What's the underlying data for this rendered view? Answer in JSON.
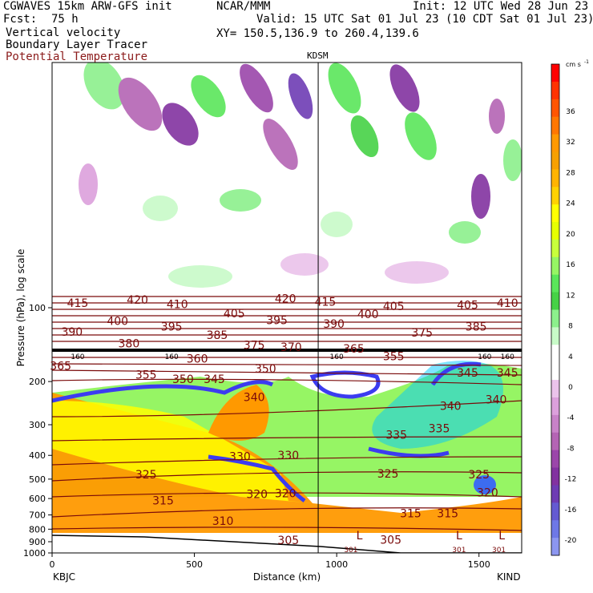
{
  "header": {
    "model": "CGWAVES 15km ARW-GFS init",
    "org": "NCAR/MMM",
    "init": "Init: 12 UTC Wed 28 Jun 23",
    "fcst_label": "Fcst:",
    "fcst_value": "75 h",
    "valid": "Valid: 15 UTC Sat 01 Jul 23 (10 CDT Sat 01 Jul 23)",
    "field1": "Vertical velocity",
    "field2": "Boundary Layer Tracer",
    "field3": "Potential Temperature",
    "xy": "XY= 150.5,136.9 to 260.4,139.6",
    "station_top": "KDSM",
    "left_station": "KBJC",
    "right_station": "KIND"
  },
  "colors": {
    "theta_line": "#7a0a0a",
    "field3_text": "#8b1a1a"
  },
  "chart_data": {
    "type": "cross-section",
    "title": "Vertical velocity / Boundary Layer Tracer / Potential Temperature",
    "xlabel": "Distance (km)",
    "ylabel": "Pressure (hPa), log scale",
    "xlim": [
      0,
      1650
    ],
    "ylim_hpa": [
      1000,
      10
    ],
    "x_ticks": [
      0,
      500,
      1000,
      1500
    ],
    "x_tick_labels": [
      "0",
      "500",
      "1000",
      "1500"
    ],
    "y_ticks": [
      100,
      200,
      300,
      400,
      500,
      600,
      700,
      800,
      900,
      1000
    ],
    "y_tick_labels": [
      "100",
      "200",
      "300",
      "400",
      "500",
      "600",
      "700",
      "800",
      "900",
      "1000"
    ],
    "station_marker_km": 935,
    "colorbar": {
      "units": "cm s",
      "units_exp": "-1",
      "ticks": [
        36,
        32,
        28,
        24,
        20,
        16,
        12,
        8,
        4,
        0,
        -4,
        -8,
        -12,
        -16,
        -20
      ],
      "tick_labels": [
        "36",
        "32",
        "28",
        "24",
        "20",
        "16",
        "12",
        "8",
        "4",
        "0",
        "-4",
        "-8",
        "-12",
        "-16",
        "-20"
      ],
      "colors": [
        "#ff0000",
        "#ff3300",
        "#ff5500",
        "#ff7700",
        "#ff9900",
        "#f7a000",
        "#ffb400",
        "#ffd200",
        "#ffff00",
        "#e6ff00",
        "#c8ff3c",
        "#96f564",
        "#5ae65a",
        "#46d246",
        "#8cf08c",
        "#c8fac8",
        "#ffffff",
        "#ffffff",
        "#ebc3eb",
        "#dca0dc",
        "#c882c8",
        "#b464b4",
        "#9b46aa",
        "#8232a0",
        "#6e3cb4",
        "#645ad2",
        "#6e78e6",
        "#8c96f0"
      ]
    },
    "theta_labels": [
      {
        "text": "415",
        "x": 90,
        "p": 97
      },
      {
        "text": "420",
        "x": 300,
        "p": 94
      },
      {
        "text": "410",
        "x": 440,
        "p": 98
      },
      {
        "text": "420",
        "x": 820,
        "p": 93
      },
      {
        "text": "415",
        "x": 960,
        "p": 96
      },
      {
        "text": "405",
        "x": 1200,
        "p": 100
      },
      {
        "text": "405",
        "x": 1460,
        "p": 99
      },
      {
        "text": "410",
        "x": 1600,
        "p": 97
      },
      {
        "text": "400",
        "x": 230,
        "p": 115
      },
      {
        "text": "405",
        "x": 640,
        "p": 107
      },
      {
        "text": "395",
        "x": 790,
        "p": 114
      },
      {
        "text": "390",
        "x": 990,
        "p": 118
      },
      {
        "text": "400",
        "x": 1110,
        "p": 108
      },
      {
        "text": "390",
        "x": 70,
        "p": 127
      },
      {
        "text": "395",
        "x": 420,
        "p": 121
      },
      {
        "text": "385",
        "x": 580,
        "p": 131
      },
      {
        "text": "375",
        "x": 1300,
        "p": 128
      },
      {
        "text": "385",
        "x": 1490,
        "p": 121
      },
      {
        "text": "380",
        "x": 270,
        "p": 142
      },
      {
        "text": "375",
        "x": 710,
        "p": 144
      },
      {
        "text": "370",
        "x": 840,
        "p": 147
      },
      {
        "text": "365",
        "x": 1060,
        "p": 149
      },
      {
        "text": "360",
        "x": 510,
        "p": 164
      },
      {
        "text": "355",
        "x": 1200,
        "p": 160
      },
      {
        "text": "365",
        "x": 30,
        "p": 175
      },
      {
        "text": "350",
        "x": 750,
        "p": 180
      },
      {
        "text": "355",
        "x": 330,
        "p": 190
      },
      {
        "text": "350",
        "x": 460,
        "p": 198
      },
      {
        "text": "345",
        "x": 570,
        "p": 198
      },
      {
        "text": "345",
        "x": 1460,
        "p": 187
      },
      {
        "text": "345",
        "x": 1600,
        "p": 187
      },
      {
        "text": "340",
        "x": 710,
        "p": 235
      },
      {
        "text": "340",
        "x": 1400,
        "p": 255
      },
      {
        "text": "340",
        "x": 1560,
        "p": 240
      },
      {
        "text": "335",
        "x": 1210,
        "p": 335
      },
      {
        "text": "335",
        "x": 1360,
        "p": 315
      },
      {
        "text": "330",
        "x": 660,
        "p": 410
      },
      {
        "text": "330",
        "x": 830,
        "p": 405
      },
      {
        "text": "325",
        "x": 330,
        "p": 485
      },
      {
        "text": "325",
        "x": 1180,
        "p": 482
      },
      {
        "text": "325",
        "x": 1500,
        "p": 485
      },
      {
        "text": "320",
        "x": 720,
        "p": 585
      },
      {
        "text": "320",
        "x": 820,
        "p": 580
      },
      {
        "text": "320",
        "x": 1530,
        "p": 575
      },
      {
        "text": "315",
        "x": 390,
        "p": 620
      },
      {
        "text": "315",
        "x": 1260,
        "p": 700
      },
      {
        "text": "315",
        "x": 1390,
        "p": 700
      },
      {
        "text": "310",
        "x": 600,
        "p": 750
      },
      {
        "text": "305",
        "x": 830,
        "p": 900
      },
      {
        "text": "305",
        "x": 1190,
        "p": 895
      }
    ],
    "tropopause_labels": [
      {
        "text": "160",
        "x": 90
      },
      {
        "text": "160",
        "x": 420
      },
      {
        "text": "160",
        "x": 1000
      },
      {
        "text": "160",
        "x": 1520
      },
      {
        "text": "160",
        "x": 1600
      }
    ],
    "low_labels": [
      {
        "text": "L",
        "x": 1080
      },
      {
        "text": "L",
        "x": 1430
      },
      {
        "text": "L",
        "x": 1580
      }
    ],
    "surface_labels": [
      {
        "text": "301",
        "x": 1050
      },
      {
        "text": "301",
        "x": 1430
      },
      {
        "text": "301",
        "x": 1570
      }
    ]
  }
}
